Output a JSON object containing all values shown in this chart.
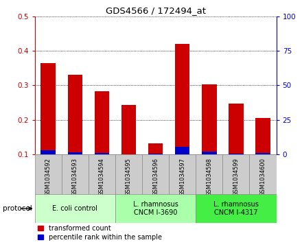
{
  "title": "GDS4566 / 172494_at",
  "samples": [
    "GSM1034592",
    "GSM1034593",
    "GSM1034594",
    "GSM1034595",
    "GSM1034596",
    "GSM1034597",
    "GSM1034598",
    "GSM1034599",
    "GSM1034600"
  ],
  "red_values": [
    0.365,
    0.33,
    0.283,
    0.243,
    0.132,
    0.42,
    0.302,
    0.248,
    0.205
  ],
  "blue_values": [
    0.113,
    0.107,
    0.104,
    0.101,
    0.102,
    0.122,
    0.108,
    0.103,
    0.104
  ],
  "ylim_left": [
    0.1,
    0.5
  ],
  "ylim_right": [
    0,
    100
  ],
  "yticks_left": [
    0.1,
    0.2,
    0.3,
    0.4,
    0.5
  ],
  "yticks_right": [
    0,
    25,
    50,
    75,
    100
  ],
  "red_color": "#cc0000",
  "blue_color": "#0000cc",
  "protocol_groups": [
    {
      "label": "E. coli control",
      "start": 0,
      "end": 3,
      "color": "#ccffcc"
    },
    {
      "label": "L. rhamnosus\nCNCM I-3690",
      "start": 3,
      "end": 6,
      "color": "#aaffaa"
    },
    {
      "label": "L. rhamnosus\nCNCM I-4317",
      "start": 6,
      "end": 9,
      "color": "#44ee44"
    }
  ],
  "legend_red": "transformed count",
  "legend_blue": "percentile rank within the sample",
  "protocol_label": "protocol",
  "sample_box_color": "#cccccc",
  "sample_box_edge": "#888888"
}
